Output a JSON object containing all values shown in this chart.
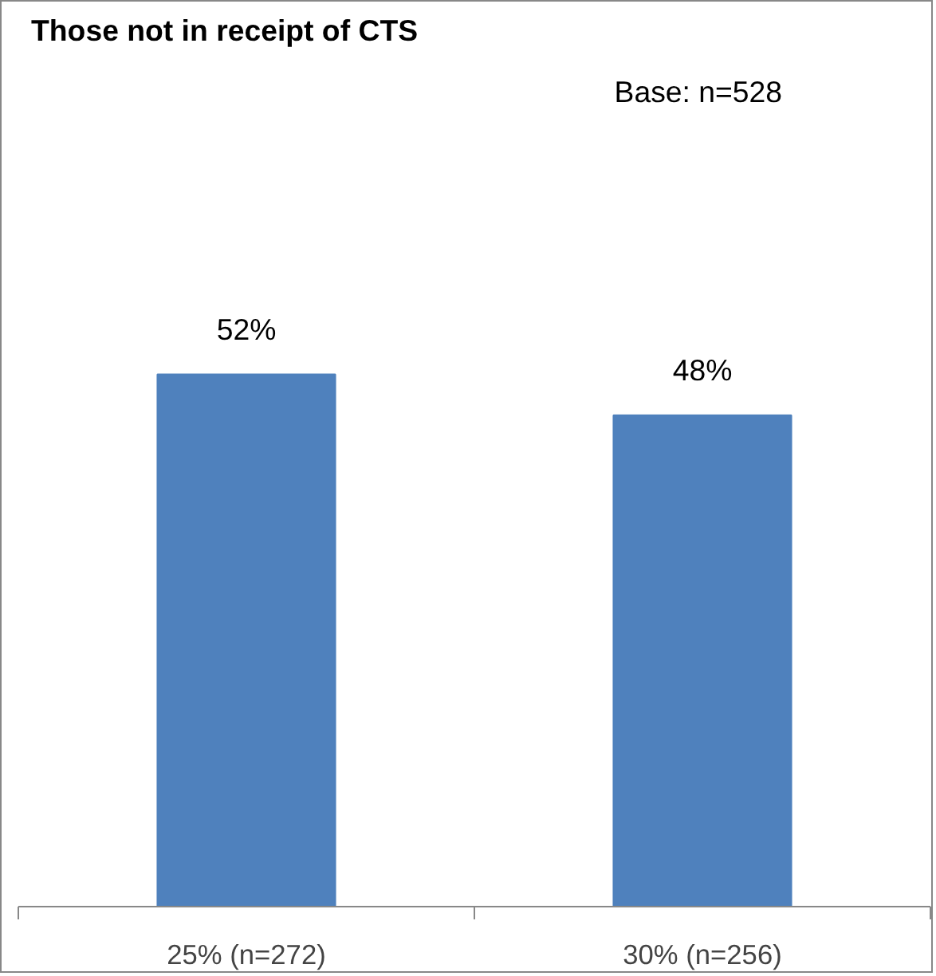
{
  "chart_data": {
    "type": "bar",
    "title": "Those not in receipt of CTS",
    "annotations": [
      "Base:  n=528"
    ],
    "categories": [
      "25% (n=272)",
      "30% (n=256)"
    ],
    "values": [
      52,
      48
    ],
    "color": "#4f81bd",
    "value_labels": [
      "52%",
      "48%"
    ],
    "grid": false,
    "tick_labels": "x"
  }
}
